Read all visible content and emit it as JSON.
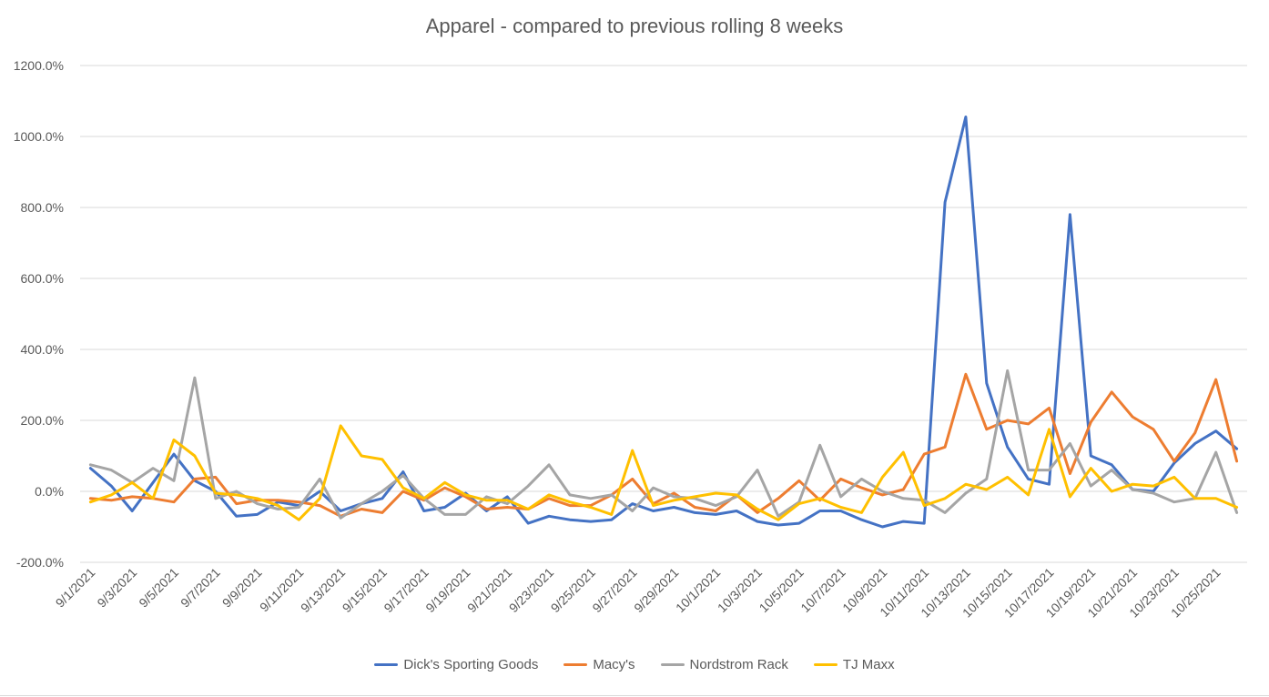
{
  "chart_data": {
    "type": "line",
    "title": "Apparel - compared to previous rolling 8 weeks",
    "xlabel": "",
    "ylabel": "",
    "ylim": [
      -200,
      1200
    ],
    "yticks": [
      -200,
      0,
      200,
      400,
      600,
      800,
      1000,
      1200
    ],
    "ytick_labels": [
      "-200.0%",
      "0.0%",
      "200.0%",
      "400.0%",
      "600.0%",
      "800.0%",
      "1000.0%",
      "1200.0%"
    ],
    "grid": true,
    "legend_position": "bottom",
    "x": [
      "9/1/2021",
      "9/2/2021",
      "9/3/2021",
      "9/4/2021",
      "9/5/2021",
      "9/6/2021",
      "9/7/2021",
      "9/8/2021",
      "9/9/2021",
      "9/10/2021",
      "9/11/2021",
      "9/12/2021",
      "9/13/2021",
      "9/14/2021",
      "9/15/2021",
      "9/16/2021",
      "9/17/2021",
      "9/18/2021",
      "9/19/2021",
      "9/20/2021",
      "9/21/2021",
      "9/22/2021",
      "9/23/2021",
      "9/24/2021",
      "9/25/2021",
      "9/26/2021",
      "9/27/2021",
      "9/28/2021",
      "9/29/2021",
      "9/30/2021",
      "10/1/2021",
      "10/2/2021",
      "10/3/2021",
      "10/4/2021",
      "10/5/2021",
      "10/6/2021",
      "10/7/2021",
      "10/8/2021",
      "10/9/2021",
      "10/10/2021",
      "10/11/2021",
      "10/12/2021",
      "10/13/2021",
      "10/14/2021",
      "10/15/2021",
      "10/16/2021",
      "10/17/2021",
      "10/18/2021",
      "10/19/2021",
      "10/20/2021",
      "10/21/2021",
      "10/22/2021",
      "10/23/2021",
      "10/24/2021",
      "10/25/2021",
      "10/26/2021"
    ],
    "x_tick_labels": [
      "9/1/2021",
      "9/3/2021",
      "9/5/2021",
      "9/7/2021",
      "9/9/2021",
      "9/11/2021",
      "9/13/2021",
      "9/15/2021",
      "9/17/2021",
      "9/19/2021",
      "9/21/2021",
      "9/23/2021",
      "9/25/2021",
      "9/27/2021",
      "9/29/2021",
      "10/1/2021",
      "10/3/2021",
      "10/5/2021",
      "10/7/2021",
      "10/9/2021",
      "10/11/2021",
      "10/13/2021",
      "10/15/2021",
      "10/17/2021",
      "10/19/2021",
      "10/21/2021",
      "10/23/2021",
      "10/25/2021"
    ],
    "series": [
      {
        "name": "Dick's Sporting Goods",
        "color": "#4472C4",
        "values": [
          65,
          15,
          -55,
          25,
          105,
          30,
          0,
          -70,
          -65,
          -30,
          -40,
          0,
          -55,
          -35,
          -20,
          55,
          -55,
          -45,
          -5,
          -55,
          -15,
          -90,
          -70,
          -80,
          -85,
          -80,
          -35,
          -55,
          -45,
          -60,
          -65,
          -55,
          -85,
          -95,
          -90,
          -55,
          -55,
          -80,
          -100,
          -85,
          -90,
          815,
          1055,
          305,
          125,
          35,
          20,
          780,
          100,
          75,
          5,
          0,
          80,
          135,
          170,
          120
        ]
      },
      {
        "name": "Macy's",
        "color": "#ED7D31",
        "values": [
          -20,
          -25,
          -15,
          -20,
          -30,
          35,
          40,
          -35,
          -25,
          -25,
          -30,
          -40,
          -70,
          -50,
          -60,
          0,
          -25,
          10,
          -15,
          -50,
          -45,
          -50,
          -20,
          -40,
          -40,
          -10,
          35,
          -35,
          -5,
          -45,
          -55,
          -10,
          -60,
          -20,
          30,
          -25,
          35,
          10,
          -10,
          5,
          105,
          125,
          330,
          175,
          200,
          190,
          235,
          50,
          195,
          280,
          210,
          175,
          85,
          165,
          315,
          85
        ]
      },
      {
        "name": "Nordstrom Rack",
        "color": "#A5A5A5",
        "values": [
          75,
          60,
          25,
          65,
          30,
          320,
          -20,
          0,
          -35,
          -50,
          -45,
          35,
          -75,
          -35,
          0,
          45,
          -20,
          -65,
          -65,
          -15,
          -35,
          15,
          75,
          -10,
          -20,
          -10,
          -55,
          10,
          -15,
          -20,
          -40,
          -15,
          60,
          -70,
          -30,
          130,
          -15,
          35,
          0,
          -20,
          -25,
          -60,
          -5,
          35,
          340,
          60,
          60,
          135,
          15,
          60,
          5,
          -5,
          -30,
          -20,
          110,
          -60
        ]
      },
      {
        "name": "TJ Maxx",
        "color": "#FFC000",
        "values": [
          -30,
          -10,
          25,
          -20,
          145,
          100,
          -5,
          -10,
          -20,
          -40,
          -80,
          -20,
          185,
          100,
          90,
          10,
          -20,
          25,
          -10,
          -25,
          -25,
          -50,
          -10,
          -30,
          -45,
          -65,
          115,
          -40,
          -25,
          -15,
          -5,
          -10,
          -50,
          -80,
          -35,
          -20,
          -45,
          -60,
          40,
          110,
          -40,
          -20,
          20,
          5,
          40,
          -10,
          175,
          -15,
          65,
          0,
          20,
          15,
          40,
          -20,
          -20,
          -45
        ]
      }
    ]
  }
}
